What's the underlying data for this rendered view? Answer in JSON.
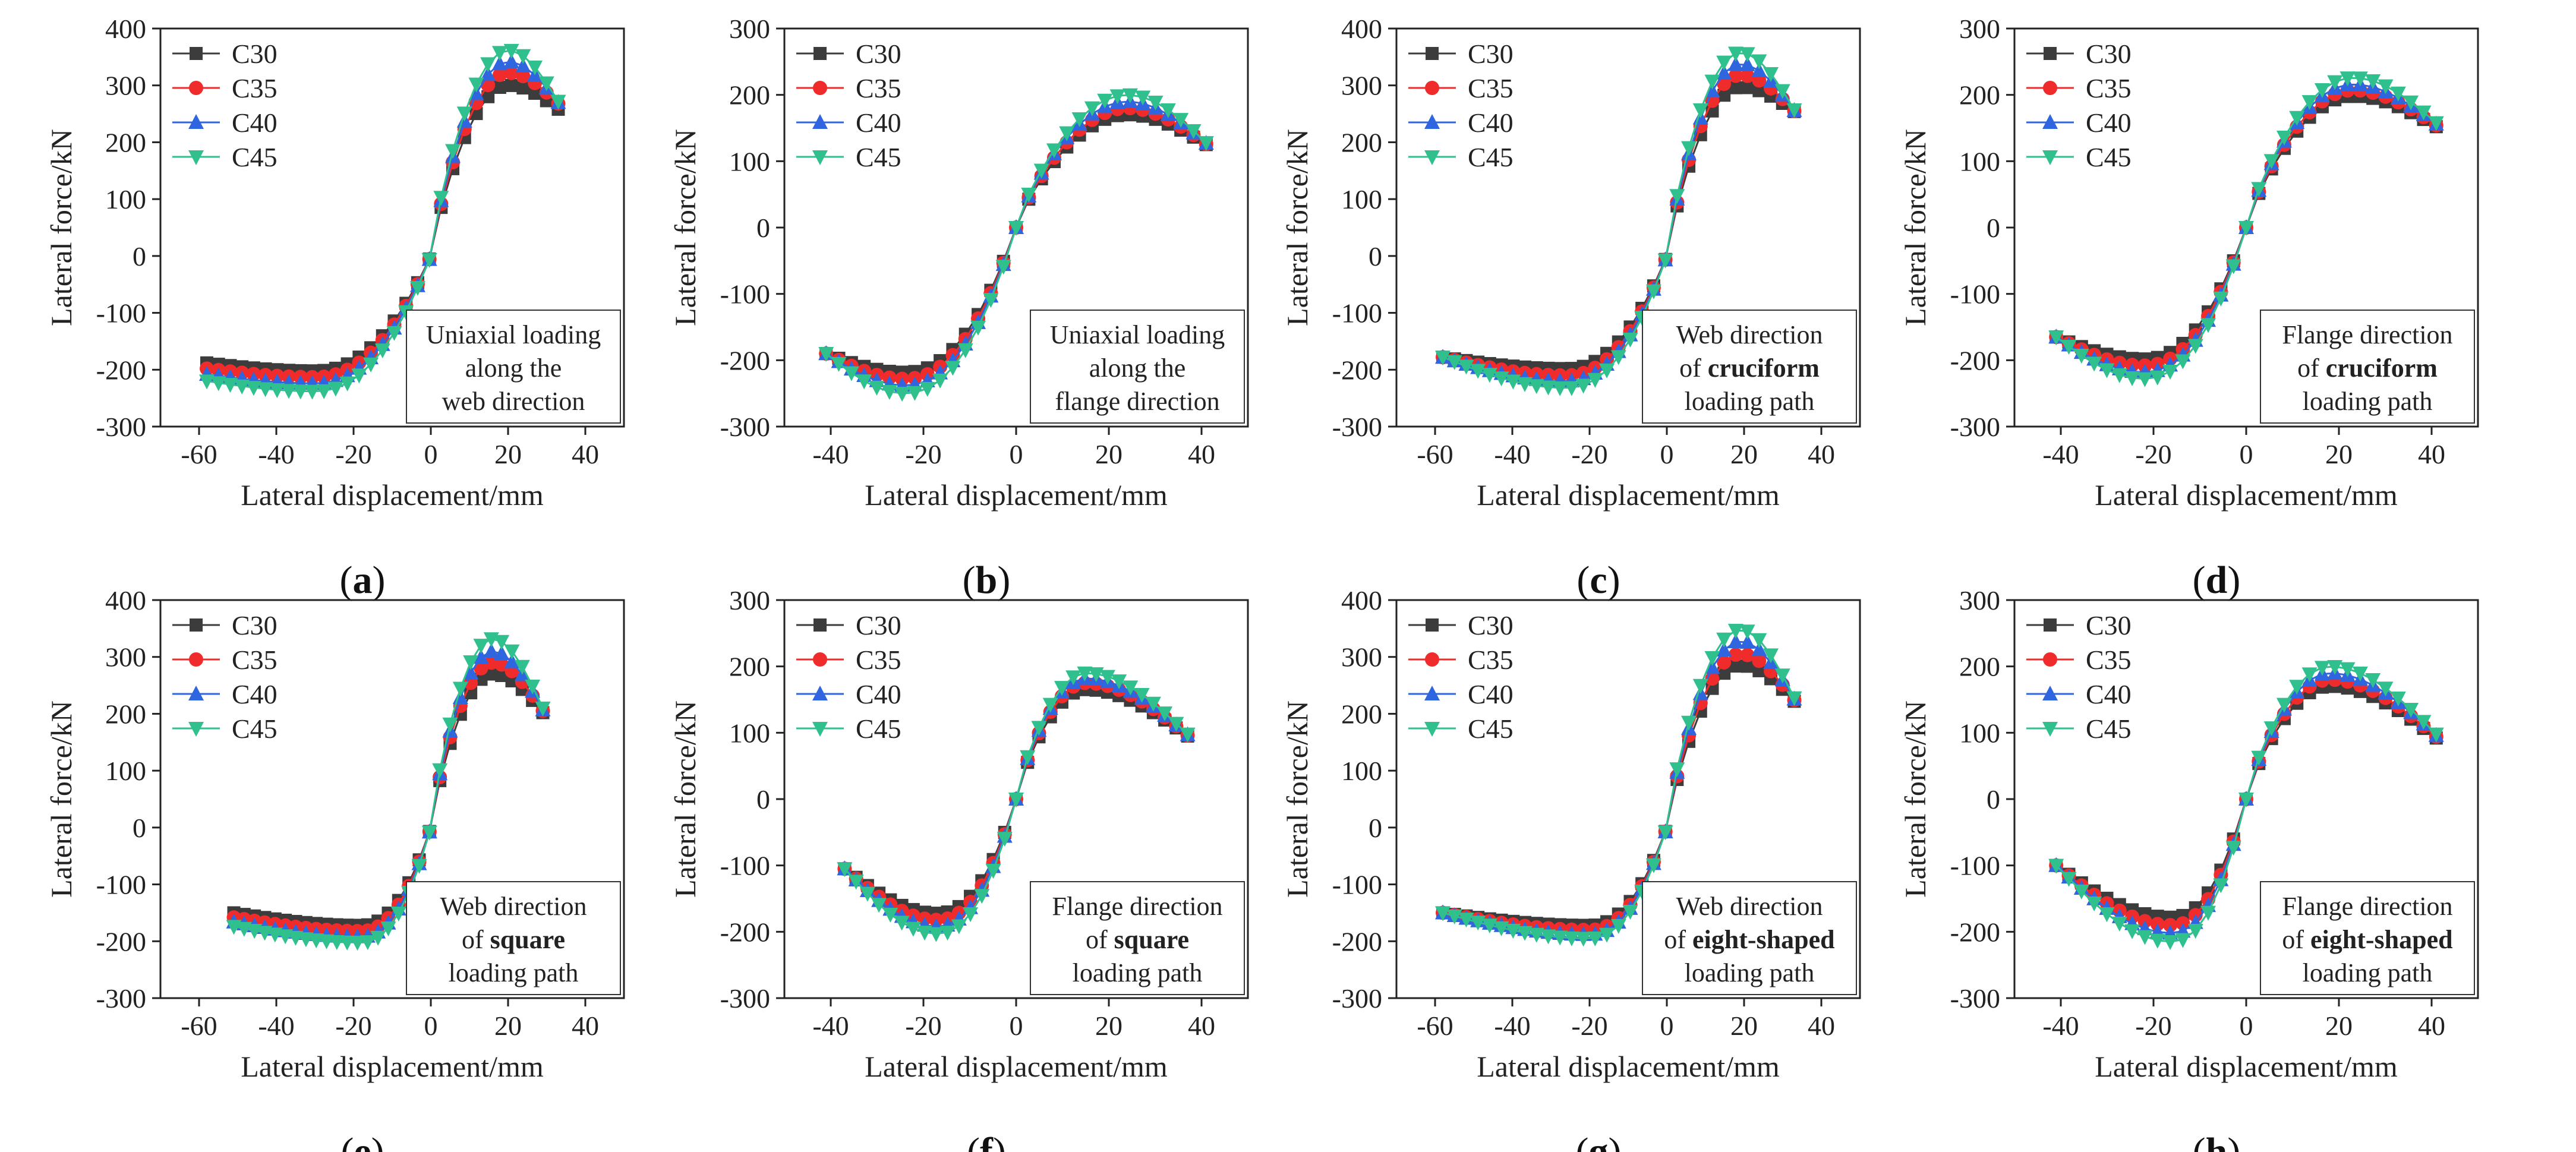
{
  "figure": {
    "legend_entries": [
      "C30",
      "C35",
      "C40",
      "C45"
    ],
    "series_colors": [
      "#3c3c3c",
      "#ef2b2b",
      "#2f66e0",
      "#2fc08d"
    ],
    "series_markers": [
      "square",
      "circle",
      "triangle-up",
      "triangle-down"
    ]
  },
  "chart_data": [
    {
      "id": "a",
      "panel_label": "(a)",
      "type": "line",
      "xlabel": "Lateral displacement/mm",
      "ylabel": "Lateral force/kN",
      "xlim": [
        -70,
        50
      ],
      "ylim": [
        -300,
        400
      ],
      "xticks": [
        -60,
        -40,
        -20,
        0,
        20,
        40
      ],
      "yticks": [
        -300,
        -200,
        -100,
        0,
        100,
        200,
        300,
        400
      ],
      "legend": "top-left",
      "annotation": [
        {
          "text": "Uniaxial loading",
          "bold": false
        },
        {
          "text": "along the",
          "bold": false
        },
        {
          "text": "web direction",
          "bold": false
        }
      ],
      "neg_peak_x": -30,
      "pos_peak_x": 20,
      "x_start": -58,
      "x_end": 33,
      "end_values": [
        258,
        268,
        270,
        272
      ],
      "series": [
        {
          "name": "C30",
          "start": -188,
          "neg_peak": -202,
          "pos_peak": 300
        },
        {
          "name": "C35",
          "start": -198,
          "neg_peak": -213,
          "pos_peak": 322
        },
        {
          "name": "C40",
          "start": -208,
          "neg_peak": -224,
          "pos_peak": 342
        },
        {
          "name": "C45",
          "start": -220,
          "neg_peak": -238,
          "pos_peak": 362
        }
      ]
    },
    {
      "id": "b",
      "panel_label": "(b)",
      "type": "line",
      "xlabel": "Lateral displacement/mm",
      "ylabel": "Lateral force/kN",
      "xlim": [
        -50,
        50
      ],
      "ylim": [
        -300,
        300
      ],
      "xticks": [
        -40,
        -20,
        0,
        20,
        40
      ],
      "yticks": [
        -300,
        -200,
        -100,
        0,
        100,
        200,
        300
      ],
      "legend": "top-left",
      "annotation": [
        {
          "text": "Uniaxial loading",
          "bold": false
        },
        {
          "text": "along the",
          "bold": false
        },
        {
          "text": "flange direction",
          "bold": false
        }
      ],
      "neg_peak_x": -24,
      "pos_peak_x": 24,
      "x_start": -41,
      "x_end": 41,
      "end_values": [
        125,
        126,
        127,
        128
      ],
      "series": [
        {
          "name": "C30",
          "start": -190,
          "neg_peak": -218,
          "pos_peak": 170
        },
        {
          "name": "C35",
          "start": -190,
          "neg_peak": -228,
          "pos_peak": 180
        },
        {
          "name": "C40",
          "start": -190,
          "neg_peak": -238,
          "pos_peak": 190
        },
        {
          "name": "C45",
          "start": -190,
          "neg_peak": -250,
          "pos_peak": 200
        }
      ]
    },
    {
      "id": "c",
      "panel_label": "(c)",
      "type": "line",
      "xlabel": "Lateral displacement/mm",
      "ylabel": "Lateral force/kN",
      "xlim": [
        -70,
        50
      ],
      "ylim": [
        -300,
        400
      ],
      "xticks": [
        -60,
        -40,
        -20,
        0,
        20,
        40
      ],
      "yticks": [
        -300,
        -200,
        -100,
        0,
        100,
        200,
        300,
        400
      ],
      "legend": "top-left",
      "annotation": [
        {
          "text": "Web direction",
          "bold": false
        },
        {
          "text": "of ",
          "bold": false,
          "bold_part": "cruciform"
        },
        {
          "text": "loading path",
          "bold": false
        }
      ],
      "neg_peak_x": -26,
      "pos_peak_x": 19,
      "x_start": -58,
      "x_end": 33,
      "end_values": [
        254,
        255,
        256,
        257
      ],
      "series": [
        {
          "name": "C30",
          "start": -178,
          "neg_peak": -198,
          "pos_peak": 297
        },
        {
          "name": "C35",
          "start": -178,
          "neg_peak": -210,
          "pos_peak": 318
        },
        {
          "name": "C40",
          "start": -178,
          "neg_peak": -220,
          "pos_peak": 338
        },
        {
          "name": "C45",
          "start": -178,
          "neg_peak": -232,
          "pos_peak": 358
        }
      ]
    },
    {
      "id": "d",
      "panel_label": "(d)",
      "type": "line",
      "xlabel": "Lateral displacement/mm",
      "ylabel": "Lateral force/kN",
      "xlim": [
        -50,
        50
      ],
      "ylim": [
        -300,
        300
      ],
      "xticks": [
        -40,
        -20,
        0,
        20,
        40
      ],
      "yticks": [
        -300,
        -200,
        -100,
        0,
        100,
        200,
        300
      ],
      "legend": "top-left",
      "annotation": [
        {
          "text": "Flange direction",
          "bold": false
        },
        {
          "text": "of ",
          "bold": false,
          "bold_part": "cruciform"
        },
        {
          "text": "loading path",
          "bold": false
        }
      ],
      "neg_peak_x": -22,
      "pos_peak_x": 23,
      "x_start": -41,
      "x_end": 41,
      "end_values": [
        152,
        154,
        156,
        158
      ],
      "series": [
        {
          "name": "C30",
          "start": -165,
          "neg_peak": -198,
          "pos_peak": 198
        },
        {
          "name": "C35",
          "start": -165,
          "neg_peak": -208,
          "pos_peak": 207
        },
        {
          "name": "C40",
          "start": -165,
          "neg_peak": -218,
          "pos_peak": 216
        },
        {
          "name": "C45",
          "start": -165,
          "neg_peak": -228,
          "pos_peak": 226
        }
      ]
    },
    {
      "id": "e",
      "panel_label": "(e)",
      "type": "line",
      "xlabel": "Lateral displacement/mm",
      "ylabel": "Lateral force/kN",
      "xlim": [
        -70,
        50
      ],
      "ylim": [
        -300,
        400
      ],
      "xticks": [
        -60,
        -40,
        -20,
        0,
        20,
        40
      ],
      "yticks": [
        -300,
        -200,
        -100,
        0,
        100,
        200,
        300,
        400
      ],
      "legend": "top-left",
      "annotation": [
        {
          "text": "Web direction",
          "bold": false
        },
        {
          "text": "of ",
          "bold": false,
          "bold_part": "square"
        },
        {
          "text": "loading path",
          "bold": false
        }
      ],
      "neg_peak_x": -18,
      "pos_peak_x": 16,
      "x_start": -51,
      "x_end": 29,
      "end_values": [
        202,
        205,
        207,
        210
      ],
      "series": [
        {
          "name": "C30",
          "start": -150,
          "neg_peak": -172,
          "pos_peak": 270
        },
        {
          "name": "C35",
          "start": -158,
          "neg_peak": -182,
          "pos_peak": 290
        },
        {
          "name": "C40",
          "start": -166,
          "neg_peak": -192,
          "pos_peak": 310
        },
        {
          "name": "C45",
          "start": -174,
          "neg_peak": -202,
          "pos_peak": 332
        }
      ]
    },
    {
      "id": "f",
      "panel_label": "(f)",
      "type": "line",
      "xlabel": "Lateral displacement/mm",
      "ylabel": "Lateral force/kN",
      "xlim": [
        -50,
        50
      ],
      "ylim": [
        -300,
        300
      ],
      "xticks": [
        -40,
        -20,
        0,
        20,
        40
      ],
      "yticks": [
        -300,
        -200,
        -100,
        0,
        100,
        200,
        300
      ],
      "legend": "top-left",
      "annotation": [
        {
          "text": "Flange direction",
          "bold": false
        },
        {
          "text": "of ",
          "bold": false,
          "bold_part": "square"
        },
        {
          "text": "loading path",
          "bold": false
        }
      ],
      "neg_peak_x": -17,
      "pos_peak_x": 15,
      "x_start": -37,
      "x_end": 37,
      "end_values": [
        95,
        96,
        97,
        98
      ],
      "series": [
        {
          "name": "C30",
          "start": -105,
          "neg_peak": -172,
          "pos_peak": 165
        },
        {
          "name": "C35",
          "start": -105,
          "neg_peak": -182,
          "pos_peak": 175
        },
        {
          "name": "C40",
          "start": -105,
          "neg_peak": -192,
          "pos_peak": 182
        },
        {
          "name": "C45",
          "start": -105,
          "neg_peak": -203,
          "pos_peak": 190
        }
      ]
    },
    {
      "id": "g",
      "panel_label": "(g)",
      "type": "line",
      "xlabel": "Lateral displacement/mm",
      "ylabel": "Lateral force/kN",
      "xlim": [
        -70,
        50
      ],
      "ylim": [
        -300,
        400
      ],
      "xticks": [
        -60,
        -40,
        -20,
        0,
        20,
        40
      ],
      "yticks": [
        -300,
        -200,
        -100,
        0,
        100,
        200,
        300,
        400
      ],
      "legend": "top-left",
      "annotation": [
        {
          "text": "Web direction",
          "bold": false
        },
        {
          "text": "of ",
          "bold": false,
          "bold_part": "eight-shaped"
        },
        {
          "text": "loading path",
          "bold": false
        }
      ],
      "neg_peak_x": -20,
      "pos_peak_x": 19,
      "x_start": -58,
      "x_end": 33,
      "end_values": [
        222,
        224,
        226,
        228
      ],
      "series": [
        {
          "name": "C30",
          "start": -150,
          "neg_peak": -172,
          "pos_peak": 285
        },
        {
          "name": "C35",
          "start": -150,
          "neg_peak": -180,
          "pos_peak": 305
        },
        {
          "name": "C40",
          "start": -150,
          "neg_peak": -188,
          "pos_peak": 328
        },
        {
          "name": "C45",
          "start": -150,
          "neg_peak": -195,
          "pos_peak": 348
        }
      ]
    },
    {
      "id": "h",
      "panel_label": "(h)",
      "type": "line",
      "xlabel": "Lateral displacement/mm",
      "ylabel": "Lateral force/kN",
      "xlim": [
        -50,
        50
      ],
      "ylim": [
        -300,
        300
      ],
      "xticks": [
        -40,
        -20,
        0,
        20,
        40
      ],
      "yticks": [
        -300,
        -200,
        -100,
        0,
        100,
        200,
        300
      ],
      "legend": "top-left",
      "annotation": [
        {
          "text": "Flange direction",
          "bold": false
        },
        {
          "text": "of ",
          "bold": false,
          "bold_part": "eight-shaped"
        },
        {
          "text": "loading path",
          "bold": false
        }
      ],
      "neg_peak_x": -16,
      "pos_peak_x": 18,
      "x_start": -41,
      "x_end": 41,
      "end_values": [
        92,
        94,
        96,
        98
      ],
      "series": [
        {
          "name": "C30",
          "start": -100,
          "neg_peak": -178,
          "pos_peak": 170
        },
        {
          "name": "C35",
          "start": -100,
          "neg_peak": -190,
          "pos_peak": 180
        },
        {
          "name": "C40",
          "start": -100,
          "neg_peak": -202,
          "pos_peak": 190
        },
        {
          "name": "C45",
          "start": -100,
          "neg_peak": -215,
          "pos_peak": 200
        }
      ]
    }
  ]
}
